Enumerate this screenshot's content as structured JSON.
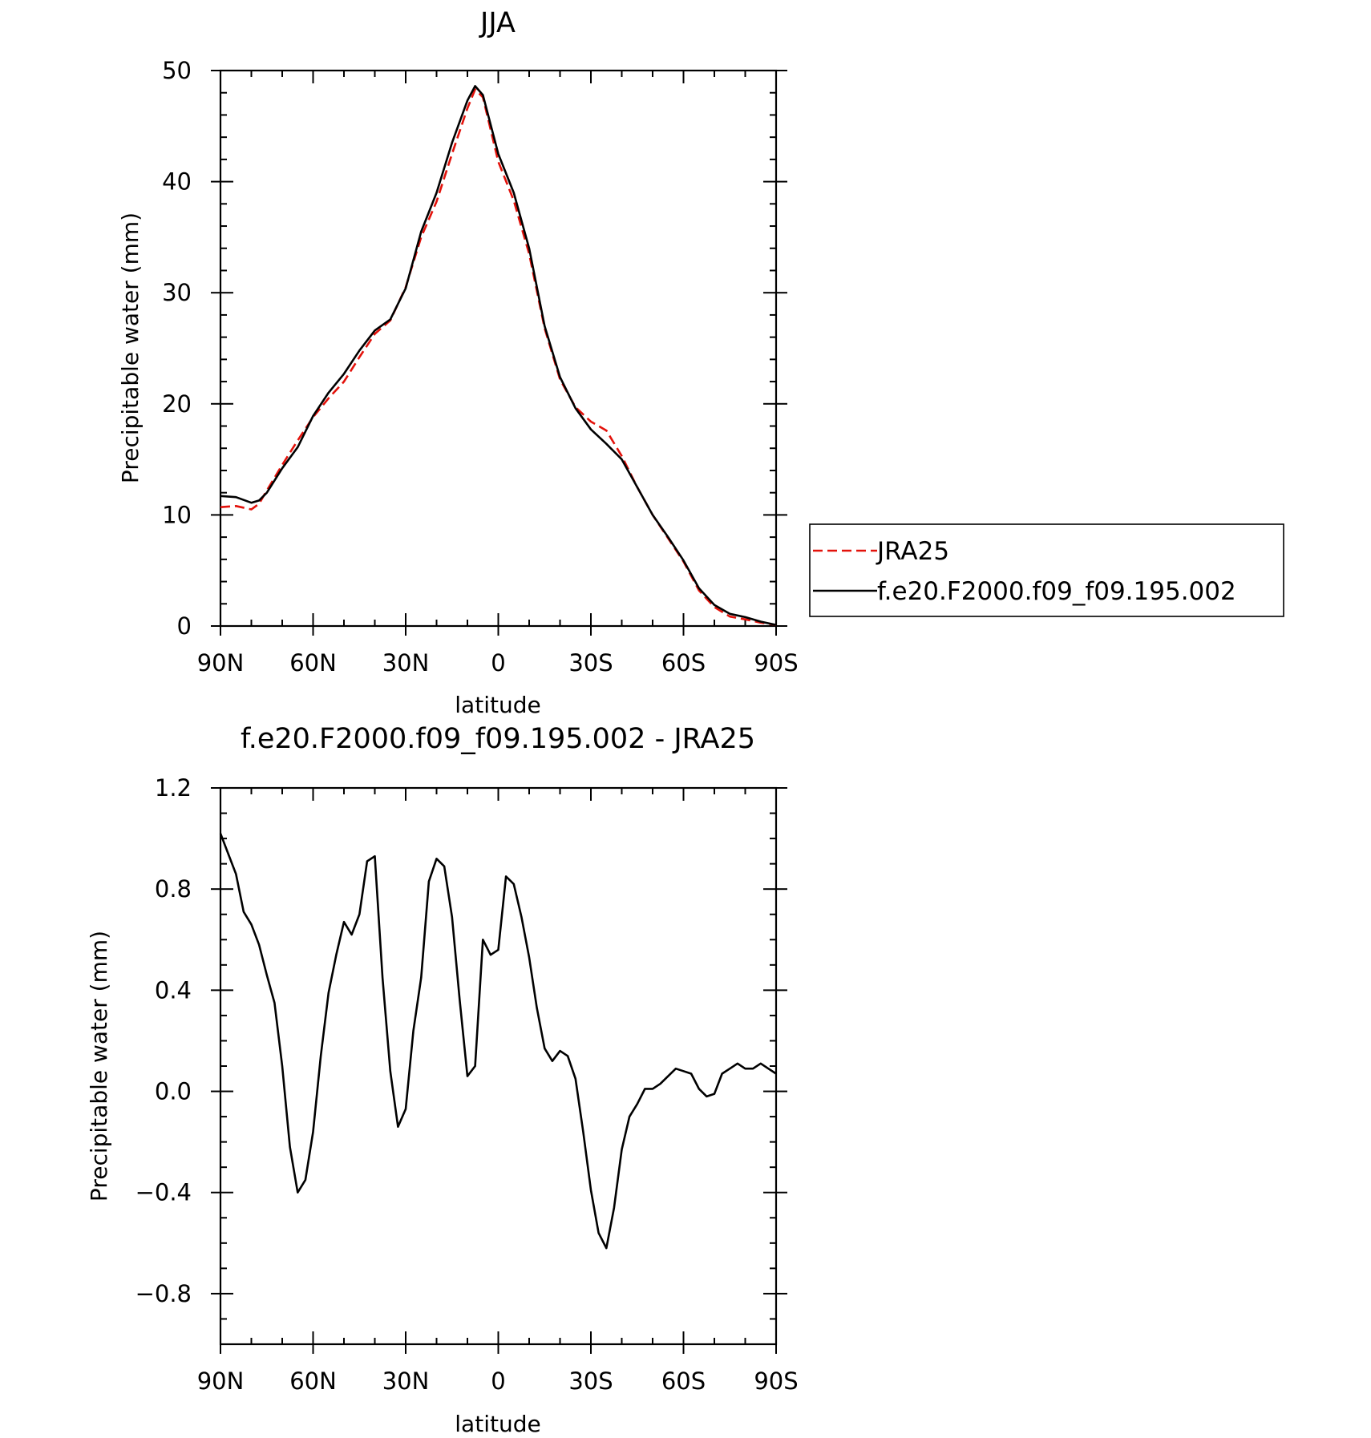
{
  "chart_data": [
    {
      "type": "line",
      "title": "JJA",
      "xlabel": "latitude",
      "ylabel": "Precipitable water (mm)",
      "xlim": [
        90,
        -90
      ],
      "ylim": [
        0,
        50
      ],
      "xtick_values": [
        90,
        60,
        30,
        0,
        -30,
        -60,
        -90
      ],
      "xticks": [
        "90N",
        "60N",
        "30N",
        "0",
        "30S",
        "60S",
        "90S"
      ],
      "ytick_values": [
        0,
        10,
        20,
        30,
        40,
        50
      ],
      "yticks": [
        "0",
        "10",
        "20",
        "30",
        "40",
        "50"
      ],
      "legend_position": "right",
      "series": [
        {
          "name": "JRA25",
          "color": "#e3120b",
          "dash": "dashed",
          "x": [
            90,
            85,
            80,
            77.5,
            75,
            70,
            65,
            60,
            55,
            50,
            45,
            40,
            35,
            30,
            25,
            20,
            15,
            10,
            7.5,
            5,
            0,
            -5,
            -10,
            -15,
            -20,
            -25,
            -30,
            -35,
            -40,
            -45,
            -50,
            -55,
            -60,
            -65,
            -70,
            -75,
            -80,
            -85,
            -90
          ],
          "values": [
            10.7,
            10.8,
            10.5,
            11.0,
            12.2,
            14.5,
            16.7,
            18.8,
            20.5,
            22.0,
            24.2,
            26.3,
            27.5,
            30.5,
            35.0,
            38.2,
            42.5,
            46.6,
            48.3,
            47.6,
            41.8,
            38.3,
            33.5,
            26.8,
            22.2,
            19.7,
            18.4,
            17.6,
            15.3,
            12.5,
            10.0,
            7.9,
            5.8,
            3.2,
            1.7,
            0.85,
            0.6,
            0.3,
            0.1
          ]
        },
        {
          "name": "f.e20.F2000.f09_f09.195.002",
          "color": "#000000",
          "dash": "solid",
          "x": [
            90,
            85,
            80,
            77.5,
            75,
            70,
            65,
            60,
            55,
            50,
            45,
            40,
            35,
            30,
            25,
            20,
            15,
            10,
            7.5,
            5,
            0,
            -5,
            -10,
            -15,
            -20,
            -25,
            -30,
            -35,
            -40,
            -45,
            -50,
            -55,
            -60,
            -65,
            -70,
            -75,
            -80,
            -85,
            -90
          ],
          "values": [
            11.7,
            11.6,
            11.1,
            11.3,
            12.0,
            14.2,
            16.1,
            18.9,
            21.0,
            22.7,
            24.8,
            26.6,
            27.6,
            30.4,
            35.5,
            39.0,
            43.5,
            47.3,
            48.6,
            47.8,
            42.5,
            39.0,
            34.0,
            27.0,
            22.4,
            19.6,
            17.7,
            16.4,
            15.0,
            12.5,
            10.0,
            8.0,
            5.9,
            3.4,
            1.9,
            1.1,
            0.8,
            0.4,
            0.1
          ]
        }
      ]
    },
    {
      "type": "line",
      "title": "f.e20.F2000.f09_f09.195.002 - JRA25",
      "xlabel": "latitude",
      "ylabel": "Precipitable water (mm)",
      "xlim": [
        90,
        -90
      ],
      "ylim": [
        -1.0,
        1.2
      ],
      "xtick_values": [
        90,
        60,
        30,
        0,
        -30,
        -60,
        -90
      ],
      "xticks": [
        "90N",
        "60N",
        "30N",
        "0",
        "30S",
        "60S",
        "90S"
      ],
      "ytick_values": [
        1.2,
        0.8,
        0.4,
        0.0,
        -0.4,
        -0.8
      ],
      "yticks": [
        "1.2",
        "0.8",
        "0.4",
        "0.0",
        "−0.4",
        "−0.8"
      ],
      "series": [
        {
          "color": "#000000",
          "dash": "solid",
          "x": [
            90,
            87.5,
            85,
            82.5,
            80,
            77.5,
            75,
            72.5,
            70,
            67.5,
            65,
            62.5,
            60,
            57.5,
            55,
            52.5,
            50,
            47.5,
            45,
            42.5,
            40,
            37.5,
            35,
            32.5,
            30,
            27.5,
            25,
            22.5,
            20,
            17.5,
            15,
            12.5,
            10,
            7.5,
            5,
            2.5,
            0,
            -2.5,
            -5,
            -7.5,
            -10,
            -12.5,
            -15,
            -17.5,
            -20,
            -22.5,
            -25,
            -27.5,
            -30,
            -32.5,
            -35,
            -37.5,
            -40,
            -42.5,
            -45,
            -47.5,
            -50,
            -52.5,
            -55,
            -57.5,
            -60,
            -62.5,
            -65,
            -67.5,
            -70,
            -72.5,
            -75,
            -77.5,
            -80,
            -82.5,
            -85,
            -87.5,
            -90
          ],
          "values": [
            1.02,
            0.94,
            0.86,
            0.71,
            0.66,
            0.58,
            0.46,
            0.35,
            0.1,
            -0.22,
            -0.4,
            -0.35,
            -0.16,
            0.14,
            0.39,
            0.54,
            0.67,
            0.62,
            0.7,
            0.91,
            0.93,
            0.45,
            0.08,
            -0.14,
            -0.07,
            0.24,
            0.45,
            0.83,
            0.92,
            0.89,
            0.69,
            0.36,
            0.06,
            0.1,
            0.6,
            0.54,
            0.56,
            0.85,
            0.82,
            0.69,
            0.53,
            0.33,
            0.17,
            0.12,
            0.16,
            0.14,
            0.05,
            -0.16,
            -0.39,
            -0.56,
            -0.62,
            -0.46,
            -0.23,
            -0.1,
            -0.05,
            0.01,
            0.01,
            0.03,
            0.06,
            0.09,
            0.08,
            0.07,
            0.01,
            -0.02,
            -0.01,
            0.07,
            0.09,
            0.11,
            0.09,
            0.09,
            0.11,
            0.09,
            0.07
          ]
        }
      ]
    }
  ]
}
